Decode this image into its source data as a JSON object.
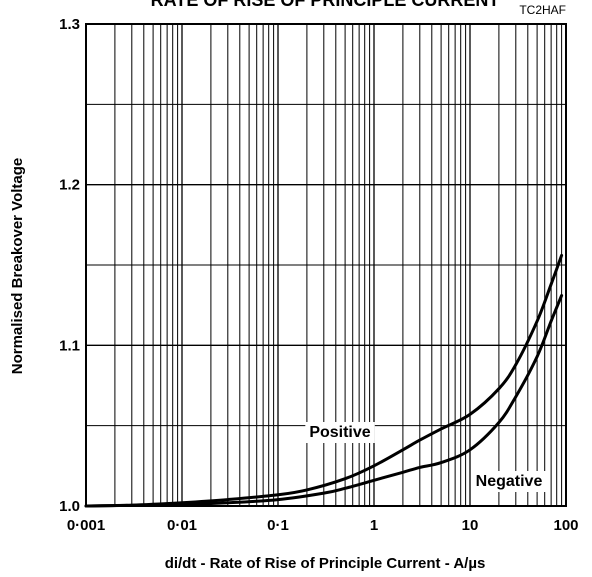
{
  "chart_data": {
    "type": "line",
    "title": "RATE OF RISE OF PRINCIPLE CURRENT",
    "figure_code": "TC2HAF",
    "xlabel": "di/dt - Rate of Rise of Principle Current - A/µs",
    "ylabel": "Normalised Breakover Voltage",
    "x_scale": "log",
    "xlim": [
      0.001,
      100
    ],
    "ylim": [
      1.0,
      1.3
    ],
    "x_ticks": [
      0.001,
      0.01,
      0.1,
      1,
      10,
      100
    ],
    "x_tick_labels": [
      "0·001",
      "0·01",
      "0·1",
      "1",
      "10",
      "100"
    ],
    "y_ticks": [
      1.0,
      1.1,
      1.2,
      1.3
    ],
    "y_tick_labels": [
      "1.0",
      "1.1",
      "1.2",
      "1.3"
    ],
    "grid": true,
    "series": [
      {
        "name": "Positive",
        "x": [
          0.001,
          0.003,
          0.01,
          0.03,
          0.1,
          0.2,
          0.5,
          1,
          2,
          3,
          5,
          10,
          20,
          30,
          50,
          70,
          90
        ],
        "y": [
          1.0,
          1.0005,
          1.002,
          1.004,
          1.007,
          1.01,
          1.017,
          1.025,
          1.035,
          1.041,
          1.048,
          1.057,
          1.073,
          1.088,
          1.115,
          1.138,
          1.156
        ]
      },
      {
        "name": "Negative",
        "x": [
          0.001,
          0.01,
          0.03,
          0.1,
          0.3,
          0.5,
          1,
          2,
          3,
          5,
          10,
          20,
          30,
          50,
          70,
          90
        ],
        "y": [
          1.0,
          1.001,
          1.002,
          1.004,
          1.008,
          1.011,
          1.016,
          1.021,
          1.024,
          1.027,
          1.035,
          1.052,
          1.068,
          1.093,
          1.115,
          1.131
        ]
      }
    ]
  }
}
